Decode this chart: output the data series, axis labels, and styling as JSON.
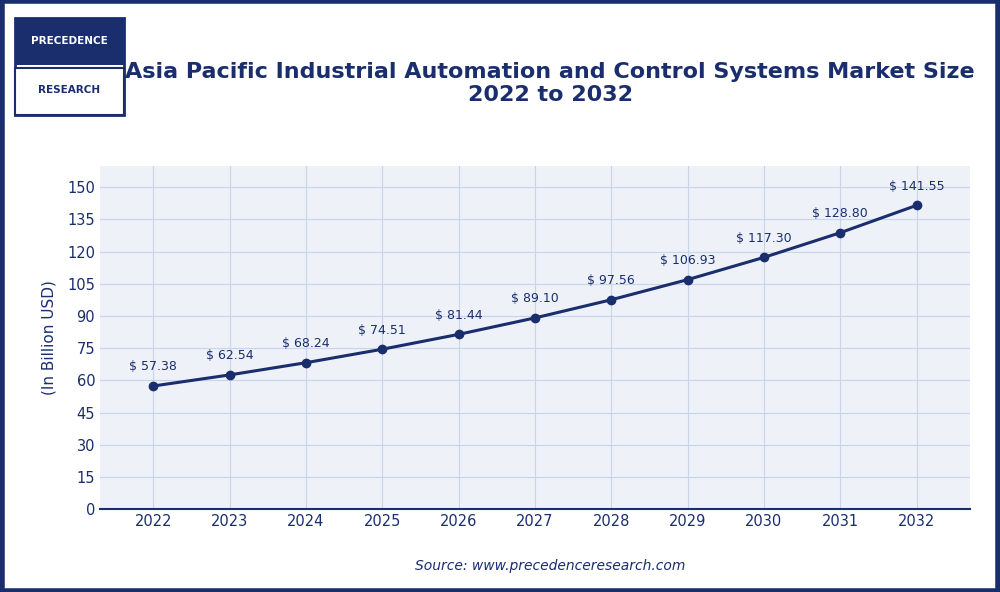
{
  "title_line1": "Asia Pacific Industrial Automation and Control Systems Market Size",
  "title_line2": "2022 to 2032",
  "years": [
    2022,
    2023,
    2024,
    2025,
    2026,
    2027,
    2028,
    2029,
    2030,
    2031,
    2032
  ],
  "values": [
    57.38,
    62.54,
    68.24,
    74.51,
    81.44,
    89.1,
    97.56,
    106.93,
    117.3,
    128.8,
    141.55
  ],
  "ylabel": "(In Billion USD)",
  "source": "Source: www.precedenceresearch.com",
  "line_color": "#1a2e6e",
  "marker_color": "#1a2e6e",
  "background_color": "#ffffff",
  "outer_border_color": "#1a2e6e",
  "plot_bg_color": "#eef1f8",
  "grid_color": "#c8d4e8",
  "yticks": [
    0,
    15,
    30,
    45,
    60,
    75,
    90,
    105,
    120,
    135,
    150
  ],
  "ylim": [
    0,
    160
  ],
  "title_color": "#1a2e6e",
  "axis_color": "#1a2e6e",
  "label_color": "#1a2e6e",
  "annotation_color": "#1a2e6e",
  "logo_bg": "#1a2e6e",
  "logo_text_top": "PRECEDENCE",
  "logo_text_bottom": "RESEARCH",
  "title_fontsize": 16,
  "annotation_fontsize": 9
}
